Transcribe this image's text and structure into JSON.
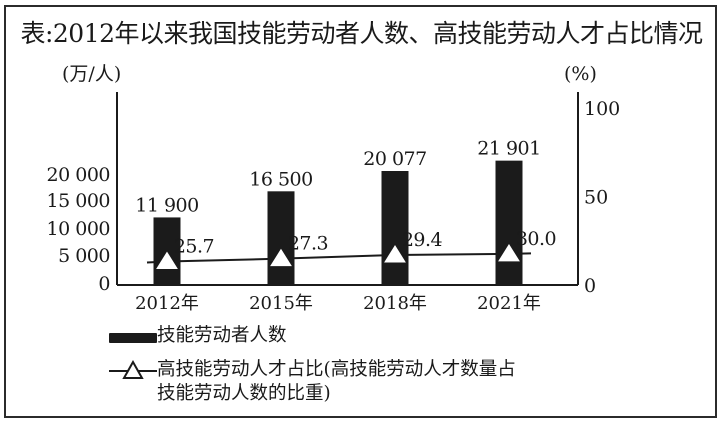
{
  "title": "表:2012年以来我国技能劳动者人数、高技能劳动人才占比情况",
  "colors": {
    "bar": "#1b1b1b",
    "line": "#1b1b1b",
    "marker_fill": "#ffffff",
    "border": "#2b2b2b"
  },
  "chart_data": {
    "type": "bar",
    "title": "表:2012年以来我国技能劳动者人数、高技能劳动人才占比情况",
    "categories": [
      "2012年",
      "2015年",
      "2018年",
      "2021年"
    ],
    "series": [
      {
        "name": "技能劳动者人数",
        "type": "bar",
        "axis": "left",
        "values": [
          11900,
          16500,
          20077,
          21901
        ],
        "labels": [
          "11 900",
          "16 500",
          "20 077",
          "21 901"
        ]
      },
      {
        "name": "高技能劳动人才占比(高技能劳动人才数量占技能劳动人数的比重)",
        "type": "line",
        "axis": "right",
        "marker": "triangle",
        "values": [
          25.7,
          27.3,
          29.4,
          30.0
        ],
        "labels": [
          "25.7",
          "27.3",
          "29.4",
          "30.0"
        ]
      }
    ],
    "left_axis": {
      "unit": "(万/人)",
      "ticks": [
        "0",
        "5 000",
        "10 000",
        "15 000",
        "20 000"
      ],
      "tick_values": [
        0,
        5000,
        10000,
        15000,
        20000
      ]
    },
    "right_axis": {
      "unit": "(%)",
      "ticks": [
        "0",
        "50",
        "100"
      ],
      "tick_values": [
        0,
        50,
        100
      ],
      "ylim": [
        0,
        100
      ]
    },
    "xlabel": "",
    "grid": false,
    "legend_position": "bottom-left"
  },
  "legend": {
    "bar_label": "技能劳动者人数",
    "line_label_line1": "高技能劳动人才占比(高技能劳动人才数量占",
    "line_label_line2": "技能劳动人数的比重)"
  }
}
